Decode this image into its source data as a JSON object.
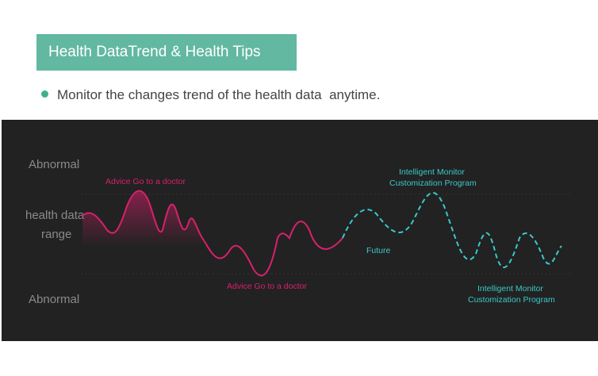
{
  "header": {
    "title": "Health DataTrend & Health Tips"
  },
  "bullets": [
    "Monitor the changes trend of the health data  anytime."
  ],
  "illustration": {
    "axis_labels": {
      "top": "Abnormal",
      "middle_line1": "health data",
      "middle_line2": "range",
      "bottom": "Abnormal"
    },
    "annotations": {
      "advice_top": "Advice  Go to a doctor",
      "advice_bottom": "Advice  Go to a doctor",
      "future": "Future",
      "monitor_top_line1": "Intelligent  Monitor",
      "monitor_top_line2": "Customization Program",
      "monitor_bottom_line1": "Intelligent  Monitor",
      "monitor_bottom_line2": "Customization Program"
    }
  }
}
